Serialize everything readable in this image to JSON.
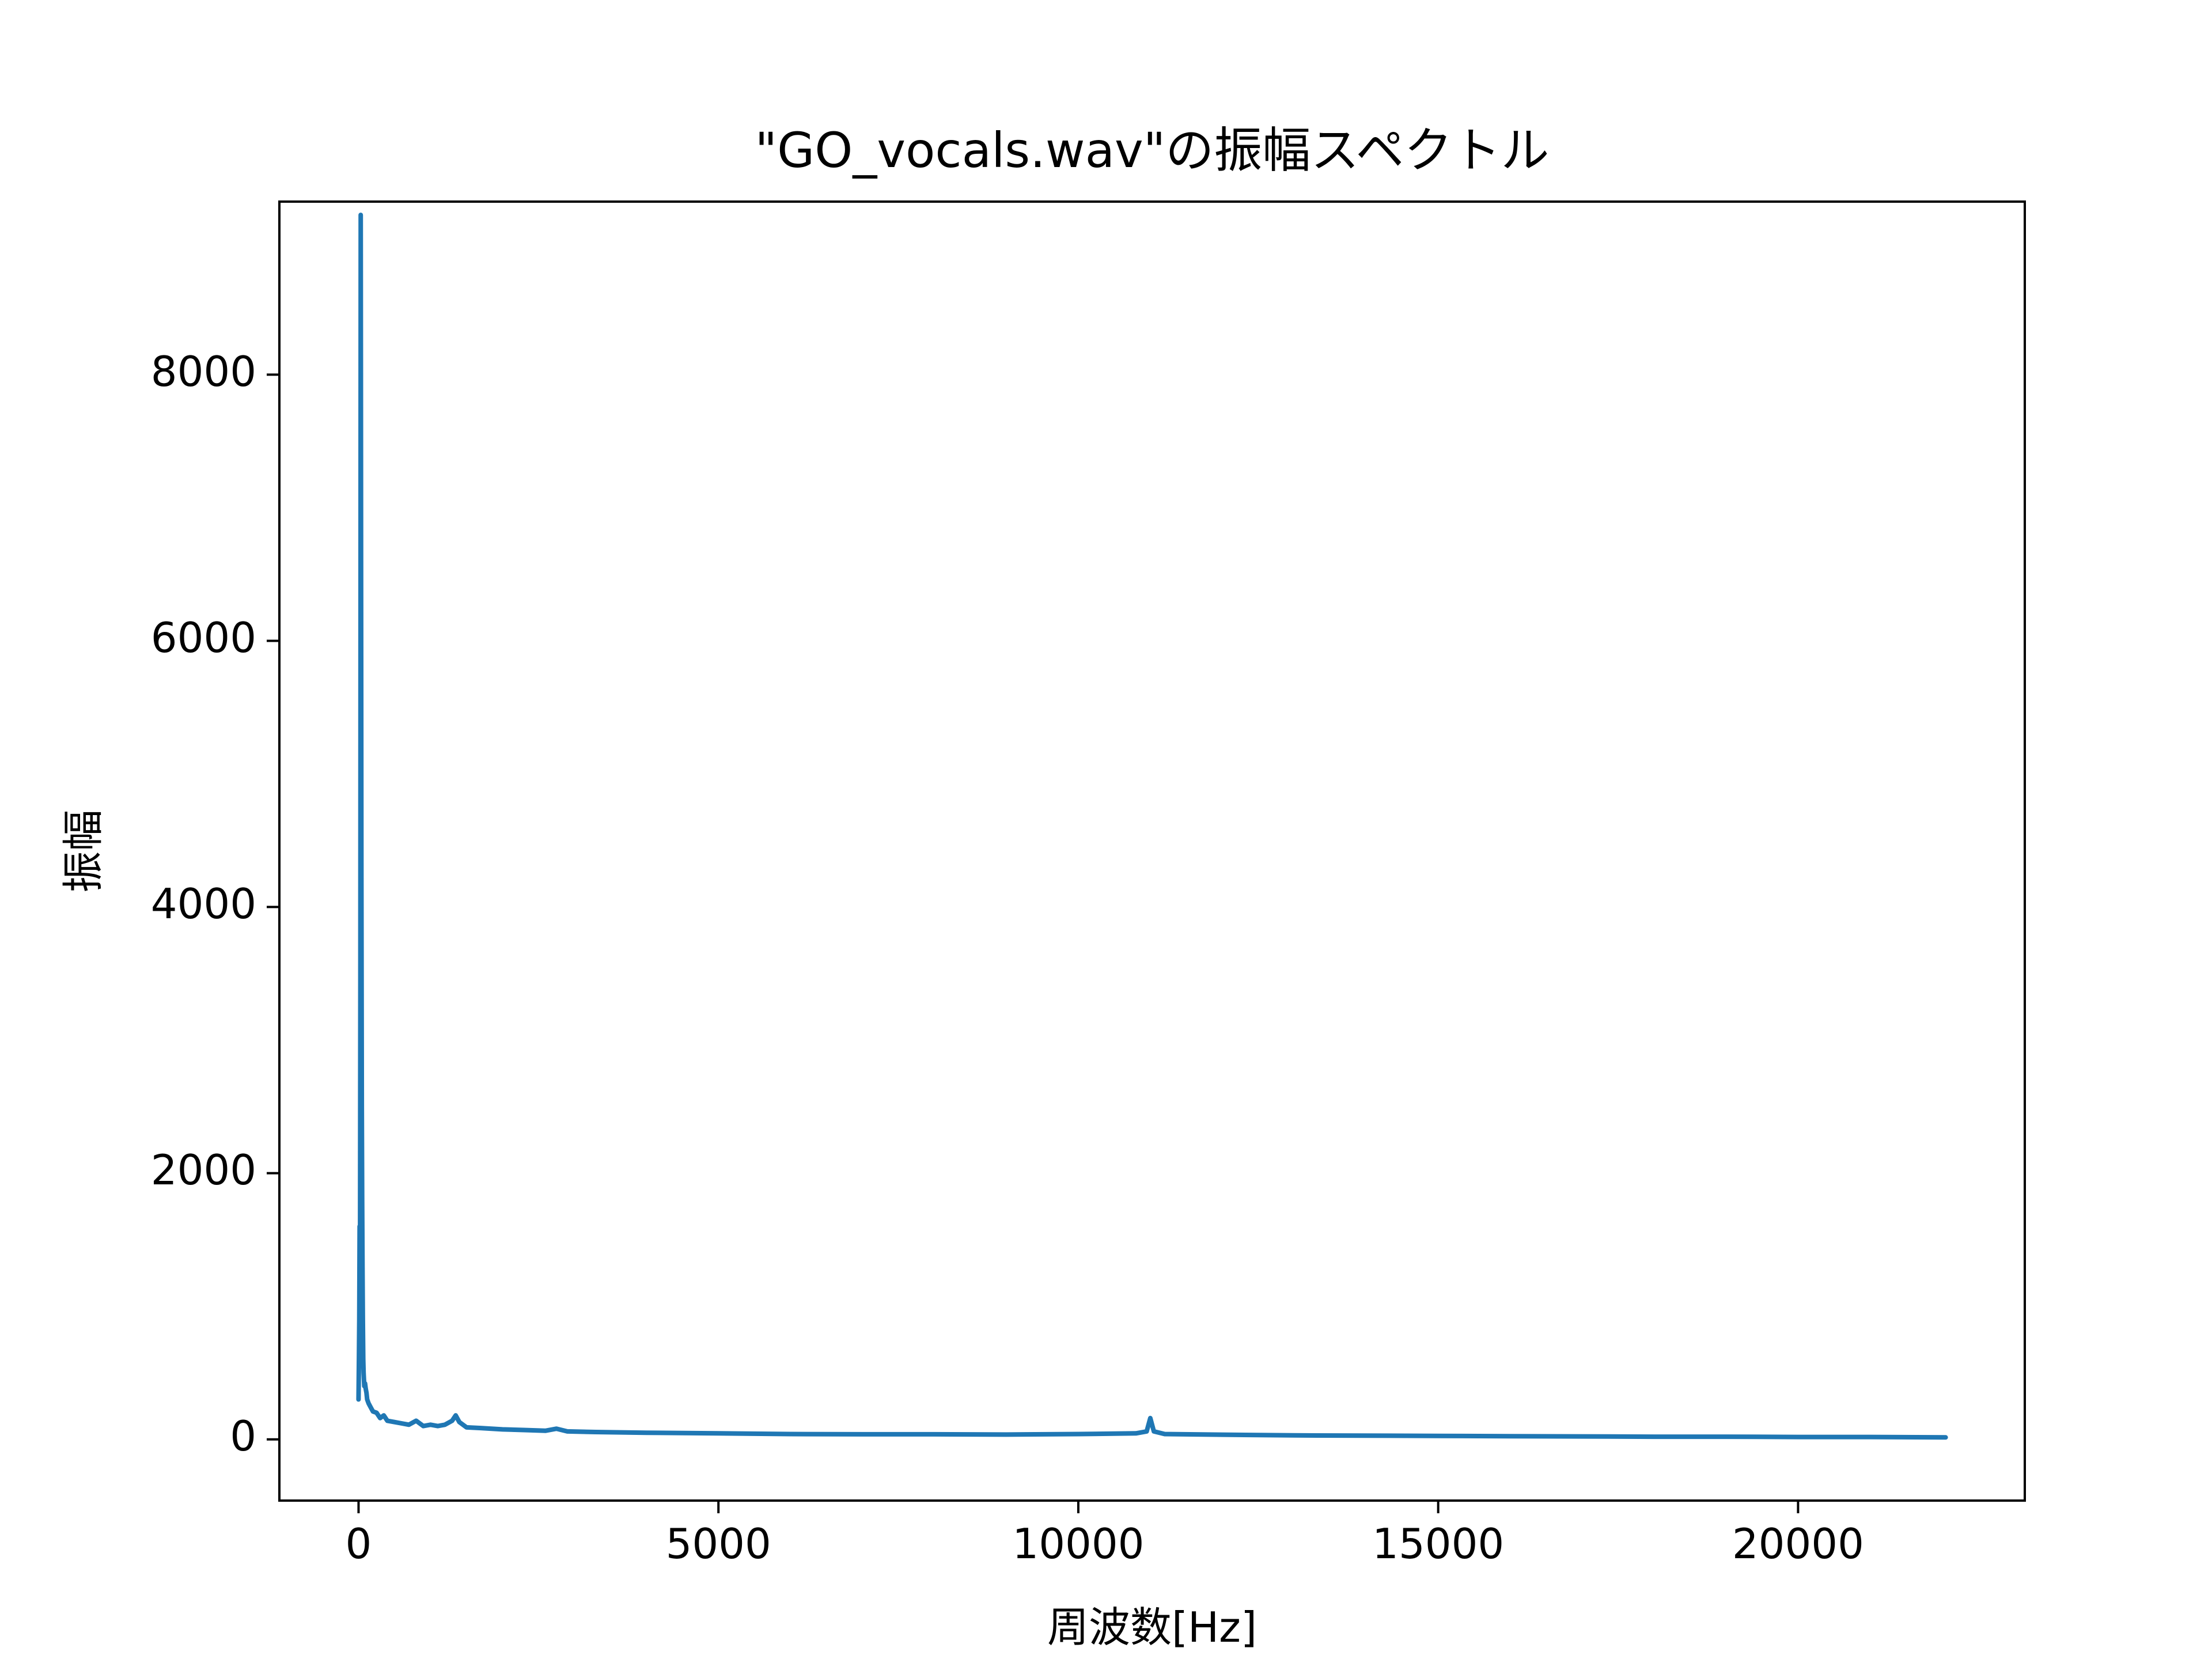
{
  "chart_data": {
    "type": "line",
    "title": "\"GO_vocals.wav\"の振幅スペクトル",
    "xlabel": "周波数[Hz]",
    "ylabel": "振幅",
    "xlim": [
      -1100,
      23150
    ],
    "ylim": [
      -460,
      9300
    ],
    "x_ticks": [
      0,
      5000,
      10000,
      15000,
      20000
    ],
    "x_tick_labels": [
      "0",
      "5000",
      "10000",
      "15000",
      "20000"
    ],
    "y_ticks": [
      0,
      2000,
      4000,
      6000,
      8000
    ],
    "y_tick_labels": [
      "0",
      "2000",
      "4000",
      "6000",
      "8000"
    ],
    "grid": false,
    "legend": "none",
    "series": [
      {
        "color": "#1f77b4",
        "x": [
          0,
          5,
          10,
          15,
          20,
          25,
          30,
          35,
          40,
          45,
          50,
          55,
          60,
          65,
          70,
          75,
          80,
          90,
          100,
          110,
          120,
          140,
          160,
          180,
          200,
          250,
          300,
          350,
          400,
          500,
          600,
          700,
          800,
          900,
          1000,
          1100,
          1200,
          1300,
          1350,
          1400,
          1500,
          1700,
          2000,
          2300,
          2600,
          2750,
          2900,
          3300,
          4000,
          5000,
          6000,
          7000,
          8000,
          9000,
          10000,
          10800,
          10950,
          11000,
          11050,
          11200,
          12000,
          13000,
          14000,
          15000,
          16000,
          17000,
          18000,
          19000,
          20000,
          21000,
          22050
        ],
        "y": [
          300,
          600,
          900,
          1600,
          800,
          3500,
          9200,
          6600,
          4200,
          2500,
          1800,
          1300,
          900,
          600,
          500,
          450,
          400,
          420,
          380,
          350,
          300,
          270,
          250,
          230,
          210,
          200,
          160,
          180,
          140,
          130,
          120,
          110,
          140,
          100,
          110,
          100,
          110,
          140,
          180,
          130,
          90,
          85,
          75,
          70,
          65,
          80,
          60,
          55,
          50,
          45,
          40,
          38,
          38,
          36,
          40,
          45,
          60,
          160,
          60,
          40,
          35,
          30,
          28,
          26,
          24,
          22,
          20,
          20,
          18,
          18,
          15
        ]
      }
    ]
  }
}
